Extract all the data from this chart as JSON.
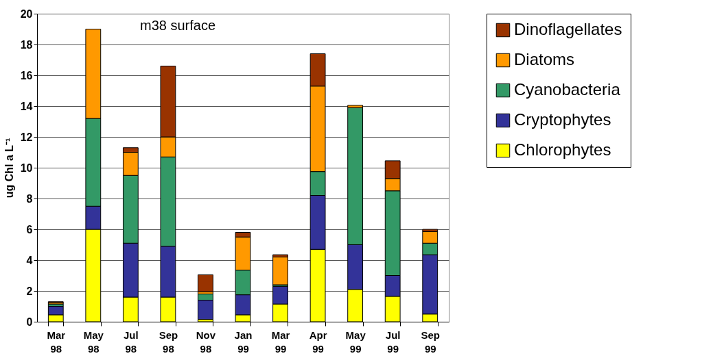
{
  "chart_data": {
    "type": "bar",
    "stacked": true,
    "title": "m38 surface",
    "ylabel": "ug Chl a L⁻¹",
    "categories": [
      "Mar 98",
      "May 98",
      "Jul 98",
      "Sep 98",
      "Nov 98",
      "Jan 99",
      "Mar 99",
      "Apr 99",
      "May 99",
      "Jul 99",
      "Sep 99"
    ],
    "series": [
      {
        "name": "Chlorophytes",
        "color": "#ffff00",
        "values": [
          0.45,
          6.0,
          1.6,
          1.6,
          0.15,
          0.45,
          1.15,
          4.7,
          2.1,
          1.65,
          0.5
        ]
      },
      {
        "name": "Cryptophytes",
        "color": "#333399",
        "values": [
          0.55,
          1.5,
          3.5,
          3.3,
          1.25,
          1.3,
          1.15,
          3.5,
          2.9,
          1.35,
          3.85
        ]
      },
      {
        "name": "Cyanobacteria",
        "color": "#339966",
        "values": [
          0.15,
          5.7,
          4.4,
          5.8,
          0.4,
          1.6,
          0.1,
          1.55,
          8.9,
          5.5,
          0.75
        ]
      },
      {
        "name": "Diatoms",
        "color": "#ff9900",
        "values": [
          0.1,
          5.8,
          1.5,
          1.3,
          0.15,
          2.15,
          1.8,
          5.55,
          0.15,
          0.8,
          0.75
        ]
      },
      {
        "name": "Dinoflagellates",
        "color": "#993300",
        "values": [
          0.05,
          0,
          0.3,
          4.6,
          1.1,
          0.3,
          0.15,
          2.1,
          0,
          1.15,
          0.15
        ]
      }
    ],
    "ylim": [
      0,
      20
    ],
    "yticks": [
      0,
      2,
      4,
      6,
      8,
      10,
      12,
      14,
      16,
      18,
      20
    ],
    "grid": "y",
    "legend": "right"
  }
}
